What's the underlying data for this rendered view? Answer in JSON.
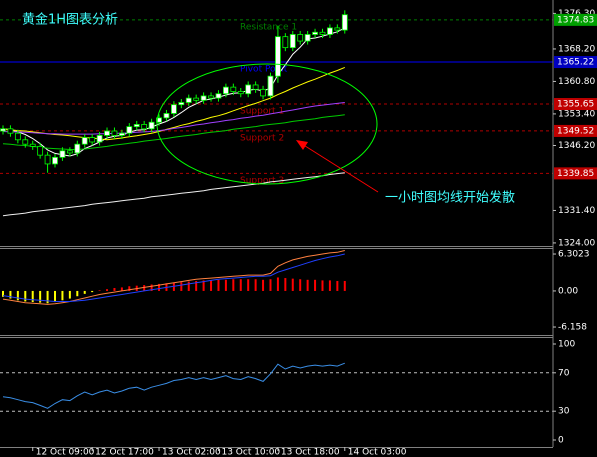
{
  "chart_data": [
    {
      "type": "candlestick",
      "title": "黄金1H图表分析",
      "categories": [
        null,
        null,
        null,
        null,
        "12 Oct 09:00",
        null,
        null,
        null,
        null,
        null,
        null,
        null,
        "12 Oct 17:00",
        null,
        null,
        null,
        null,
        null,
        null,
        null,
        null,
        "13 Oct 02:00",
        null,
        null,
        null,
        null,
        null,
        null,
        null,
        "13 Oct 10:00",
        null,
        null,
        null,
        null,
        null,
        null,
        null,
        "13 Oct 18:00",
        null,
        null,
        null,
        null,
        null,
        null,
        null,
        null,
        "14 Oct 03:00"
      ],
      "open": [
        1349.5,
        1350.0,
        1349.0,
        1347.5,
        1346.5,
        1346.0,
        1344.0,
        1342.0,
        1343.5,
        1345.0,
        1344.5,
        1346.5,
        1348.0,
        1347.0,
        1348.5,
        1349.5,
        1348.5,
        1349.0,
        1350.5,
        1351.0,
        1350.0,
        1351.5,
        1352.5,
        1353.5,
        1355.5,
        1356.0,
        1357.0,
        1356.5,
        1357.5,
        1357.0,
        1358.0,
        1359.5,
        1358.5,
        1358.0,
        1360.0,
        1359.0,
        1357.5,
        1362.0,
        1371.0,
        1368.5,
        1371.5,
        1370.0,
        1371.5,
        1372.0,
        1371.5,
        1373.0,
        1372.5
      ],
      "high": [
        1350.8,
        1350.8,
        1349.8,
        1348.3,
        1347.3,
        1346.8,
        1344.8,
        1344.3,
        1345.8,
        1345.8,
        1347.3,
        1348.8,
        1348.8,
        1349.3,
        1350.3,
        1350.3,
        1349.8,
        1351.3,
        1351.8,
        1351.8,
        1352.3,
        1353.3,
        1354.3,
        1356.3,
        1356.8,
        1357.8,
        1357.8,
        1358.3,
        1358.3,
        1358.8,
        1360.3,
        1360.3,
        1359.3,
        1360.8,
        1360.8,
        1359.8,
        1362.8,
        1373.5,
        1371.8,
        1372.3,
        1372.3,
        1372.3,
        1372.8,
        1372.8,
        1373.8,
        1373.8,
        1377.0
      ],
      "low": [
        1348.7,
        1348.2,
        1346.7,
        1345.7,
        1345.2,
        1343.2,
        1340.0,
        1341.2,
        1342.7,
        1343.7,
        1343.7,
        1345.7,
        1346.2,
        1346.2,
        1347.7,
        1347.7,
        1347.7,
        1348.2,
        1349.7,
        1349.2,
        1349.2,
        1350.7,
        1351.7,
        1352.7,
        1354.7,
        1355.2,
        1355.7,
        1355.7,
        1356.2,
        1356.2,
        1357.2,
        1357.7,
        1357.2,
        1357.2,
        1358.2,
        1356.7,
        1356.7,
        1360.5,
        1367.7,
        1367.7,
        1369.2,
        1369.2,
        1370.7,
        1370.7,
        1370.7,
        1371.7,
        1371.7
      ],
      "close": [
        1350.0,
        1349.0,
        1347.5,
        1346.5,
        1346.0,
        1344.0,
        1342.0,
        1343.5,
        1345.0,
        1344.5,
        1346.5,
        1348.0,
        1347.0,
        1348.5,
        1349.5,
        1348.5,
        1349.0,
        1350.5,
        1351.0,
        1350.0,
        1351.5,
        1352.5,
        1353.5,
        1355.5,
        1356.0,
        1357.0,
        1356.5,
        1357.5,
        1357.0,
        1358.0,
        1359.5,
        1358.5,
        1358.0,
        1360.0,
        1359.0,
        1357.5,
        1362.0,
        1371.0,
        1368.5,
        1371.5,
        1370.0,
        1371.5,
        1372.0,
        1371.5,
        1373.0,
        1372.5,
        1376.0
      ],
      "up_color": "#ffffff",
      "down_color": "#000000",
      "wick_color": "#00ff00",
      "ylim": [
        1323.3,
        1378.9
      ],
      "yticks": [
        {
          "value": 1376.3,
          "label": "1376.30"
        },
        {
          "value": 1368.2,
          "label": "1368.20"
        },
        {
          "value": 1360.8,
          "label": "1360.80"
        },
        {
          "value": 1353.4,
          "label": "1353.40"
        },
        {
          "value": 1346.2,
          "label": "1346.20"
        },
        {
          "value": 1331.4,
          "label": "1331.40"
        },
        {
          "value": 1324,
          "label": "1324.00"
        }
      ],
      "moving_averages": [
        {
          "color": "#ffffff",
          "values": [
            1350,
            1349.8,
            1349.3,
            1348.7,
            1347.8,
            1346.6,
            1345.2,
            1344.4,
            1344.1,
            1343.8,
            1344.3,
            1345.5,
            1346.2,
            1347.0,
            1347.9,
            1348.3,
            1348.5,
            1349.2,
            1349.7,
            1349.8,
            1350.4,
            1351.1,
            1351.7,
            1352.6,
            1353.7,
            1354.9,
            1355.7,
            1356.5,
            1356.8,
            1357.2,
            1357.7,
            1358.1,
            1358.2,
            1358.8,
            1359.0,
            1358.6,
            1359.3,
            1362.3,
            1364.6,
            1367.0,
            1368.6,
            1370.5,
            1370.7,
            1371.1,
            1371.6,
            1372.1,
            1373.0
          ]
        },
        {
          "color": "#ffff00",
          "values": [
            1350.0,
            1349.8,
            1349.6,
            1349.5,
            1349.3,
            1349.1,
            1348.9,
            1348.7,
            1348.6,
            1348.4,
            1348.2,
            1348.0,
            1347.9,
            1347.7,
            1347.5,
            1347.7,
            1347.9,
            1348.2,
            1348.4,
            1348.7,
            1349.0,
            1349.4,
            1349.9,
            1350.3,
            1350.8,
            1351.2,
            1351.7,
            1352.1,
            1352.6,
            1353.0,
            1353.5,
            1354.1,
            1354.7,
            1355.3,
            1355.8,
            1356.4,
            1357.0,
            1357.8,
            1358.5,
            1359.3,
            1360.0,
            1360.7,
            1361.3,
            1362.0,
            1362.7,
            1363.3,
            1364.0
          ]
        },
        {
          "color": "#a040ff",
          "values": [
            1349.4,
            1349.3,
            1349.3,
            1349.2,
            1349.1,
            1349.0,
            1348.9,
            1348.9,
            1348.8,
            1348.8,
            1348.8,
            1348.8,
            1348.8,
            1348.9,
            1348.9,
            1349.0,
            1349.0,
            1349.1,
            1349.2,
            1349.3,
            1349.4,
            1349.6,
            1349.8,
            1350.1,
            1350.3,
            1350.6,
            1350.9,
            1351.1,
            1351.4,
            1351.6,
            1351.9,
            1352.1,
            1352.4,
            1352.6,
            1352.9,
            1353.1,
            1353.4,
            1353.7,
            1354.0,
            1354.3,
            1354.6,
            1354.9,
            1355.2,
            1355.4,
            1355.6,
            1355.8,
            1356.0
          ]
        },
        {
          "color": "#00cc00",
          "values": [
            1346.6,
            1346.5,
            1346.3,
            1346.2,
            1346.0,
            1345.8,
            1345.6,
            1345.5,
            1345.4,
            1345.3,
            1345.3,
            1345.4,
            1345.6,
            1345.8,
            1346.0,
            1346.3,
            1346.5,
            1346.7,
            1346.9,
            1347.2,
            1347.4,
            1347.6,
            1347.8,
            1348.1,
            1348.3,
            1348.5,
            1348.7,
            1349.0,
            1349.2,
            1349.4,
            1349.6,
            1349.9,
            1350.1,
            1350.3,
            1350.5,
            1350.8,
            1351.0,
            1351.2,
            1351.4,
            1351.7,
            1351.9,
            1352.1,
            1352.3,
            1352.6,
            1352.8,
            1353.0,
            1353.2
          ]
        },
        {
          "color": "#f0f0f0",
          "values": [
            1330.2,
            1330.4,
            1330.6,
            1330.8,
            1331.1,
            1331.3,
            1331.5,
            1331.7,
            1331.9,
            1332.1,
            1332.3,
            1332.5,
            1332.8,
            1333.0,
            1333.2,
            1333.4,
            1333.6,
            1333.8,
            1334.0,
            1334.2,
            1334.5,
            1334.7,
            1334.9,
            1335.1,
            1335.3,
            1335.5,
            1335.7,
            1335.9,
            1336.2,
            1336.4,
            1336.6,
            1336.8,
            1337.0,
            1337.2,
            1337.4,
            1337.6,
            1337.9,
            1338.1,
            1338.3,
            1338.5,
            1338.7,
            1338.9,
            1339.1,
            1339.3,
            1339.6,
            1339.8,
            1340.0
          ]
        }
      ],
      "levels": [
        {
          "name": "Resistance 1",
          "value": 1374.83,
          "color": "#008000",
          "box_color": "#00a000",
          "dash": true
        },
        {
          "name": "Pivot Point",
          "value": 1365.22,
          "color": "#0000ff",
          "box_color": "#0000c0",
          "dash": false
        },
        {
          "name": "Support 1",
          "value": 1355.65,
          "color": "#b00000",
          "box_color": "#c00000",
          "dash": true
        },
        {
          "name": "Support 2",
          "value": 1349.52,
          "color": "#b00000",
          "box_color": "#c00000",
          "dash": true
        },
        {
          "name": "Support 3",
          "value": 1339.85,
          "color": "#b00000",
          "box_color": "#c00000",
          "dash": true
        }
      ],
      "annotation": "一小时图均线开始发散"
    },
    {
      "type": "macd",
      "values": [
        -1.0,
        -1.3,
        -1.6,
        -1.8,
        -1.9,
        -2.0,
        -2.1,
        -1.9,
        -1.6,
        -1.3,
        -0.9,
        -0.5,
        -0.2,
        0.1,
        0.3,
        0.5,
        0.6,
        0.8,
        0.9,
        1.0,
        1.1,
        1.2,
        1.3,
        1.4,
        1.5,
        1.6,
        1.7,
        1.8,
        1.8,
        1.9,
        1.9,
        2.0,
        2.0,
        2.0,
        2.0,
        1.9,
        2.0,
        2.3,
        2.2,
        2.1,
        2.0,
        1.9,
        1.9,
        1.8,
        1.8,
        1.7,
        1.7
      ],
      "pos_color": "#ff0000",
      "neg_color": "#ffff00",
      "series": [
        {
          "color": "#ff8040",
          "values": [
            -1.4,
            -1.6,
            -1.8,
            -2.0,
            -2.1,
            -2.2,
            -2.3,
            -2.2,
            -2.0,
            -1.8,
            -1.5,
            -1.2,
            -0.9,
            -0.6,
            -0.4,
            -0.2,
            0.0,
            0.2,
            0.4,
            0.6,
            0.8,
            1.0,
            1.2,
            1.4,
            1.6,
            1.8,
            2.0,
            2.1,
            2.2,
            2.3,
            2.4,
            2.5,
            2.6,
            2.7,
            2.7,
            2.7,
            3.0,
            4.2,
            4.8,
            5.3,
            5.6,
            5.9,
            6.1,
            6.3,
            6.5,
            6.6,
            6.9
          ]
        },
        {
          "color": "#2040ff",
          "values": [
            -0.8,
            -1.0,
            -1.2,
            -1.4,
            -1.5,
            -1.6,
            -1.7,
            -1.8,
            -1.8,
            -1.8,
            -1.7,
            -1.6,
            -1.4,
            -1.2,
            -1.0,
            -0.8,
            -0.6,
            -0.4,
            -0.2,
            0.0,
            0.2,
            0.4,
            0.6,
            0.8,
            1.0,
            1.2,
            1.4,
            1.6,
            1.8,
            2.0,
            2.1,
            2.2,
            2.3,
            2.4,
            2.5,
            2.5,
            2.6,
            3.2,
            3.6,
            4.0,
            4.4,
            4.8,
            5.2,
            5.5,
            5.8,
            6.0,
            6.3
          ]
        }
      ],
      "ylim": [
        -7.52,
        7.33
      ],
      "yticks": [
        6.3023,
        {
          "value": 0,
          "label": "0.00"
        },
        -6.158
      ]
    },
    {
      "type": "rsi",
      "values": [
        45,
        44,
        42,
        40,
        39,
        36,
        33,
        38,
        42,
        41,
        46,
        50,
        47,
        50,
        52,
        49,
        51,
        54,
        55,
        52,
        55,
        57,
        59,
        62,
        63,
        65,
        63,
        65,
        63,
        65,
        67,
        64,
        63,
        66,
        64,
        61,
        69,
        79,
        74,
        77,
        75,
        77,
        78,
        77,
        78,
        77,
        80
      ],
      "color": "#3a8ee6",
      "ylim": [
        -7.3,
        107.3
      ],
      "yticks": [
        100,
        70,
        30,
        0
      ],
      "levels": [
        70,
        30
      ]
    }
  ]
}
